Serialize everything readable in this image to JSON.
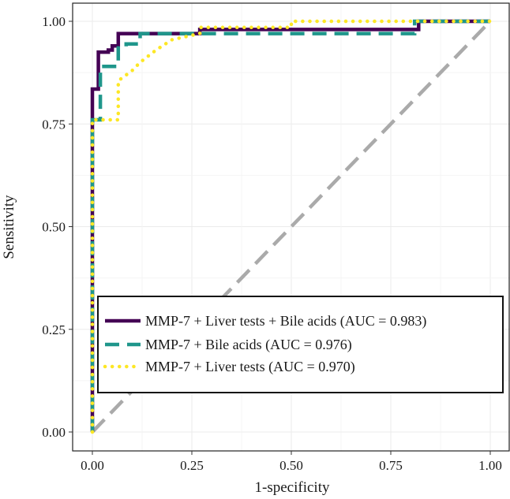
{
  "chart_data": {
    "type": "line",
    "xlabel": "1-specificity",
    "ylabel": "Sensitivity",
    "xlim": [
      0,
      1
    ],
    "ylim": [
      0,
      1
    ],
    "xticks": [
      0,
      0.25,
      0.5,
      0.75,
      1
    ],
    "xtick_labels": [
      "0.00",
      "0.25",
      "0.50",
      "0.75",
      "1.00"
    ],
    "yticks": [
      0,
      0.25,
      0.5,
      0.75,
      1
    ],
    "ytick_labels": [
      "0.00",
      "0.25",
      "0.50",
      "0.75",
      "1.00"
    ],
    "grid": true,
    "legend_position": "bottom-right",
    "reference_line": {
      "x": [
        0,
        1
      ],
      "y": [
        0,
        1
      ],
      "color": "#aaaaaa",
      "style": "dashed"
    },
    "series": [
      {
        "name": "MMP-7 + Liver tests + Bile acids (AUC = 0.983)",
        "color": "#440154",
        "style": "solid",
        "x": [
          0,
          0,
          0.015,
          0.015,
          0.04,
          0.04,
          0.05,
          0.05,
          0.065,
          0.065,
          0.27,
          0.27,
          0.82,
          0.82,
          1
        ],
        "y": [
          0,
          0.835,
          0.835,
          0.925,
          0.925,
          0.93,
          0.93,
          0.94,
          0.94,
          0.97,
          0.97,
          0.98,
          0.98,
          1,
          1
        ]
      },
      {
        "name": "MMP-7 + Bile acids (AUC = 0.976)",
        "color": "#1f968b",
        "style": "dashed",
        "x": [
          0,
          0,
          0.02,
          0.02,
          0.065,
          0.065,
          0.085,
          0.085,
          0.12,
          0.12,
          0.275,
          0.275,
          0.81,
          0.81,
          1
        ],
        "y": [
          0,
          0.76,
          0.76,
          0.89,
          0.89,
          0.935,
          0.935,
          0.945,
          0.945,
          0.97,
          0.97,
          0.97,
          0.97,
          1,
          1
        ]
      },
      {
        "name": "MMP-7 + Liver tests (AUC = 0.970)",
        "color": "#fde725",
        "style": "dotted",
        "x": [
          0,
          0,
          0.02,
          0.02,
          0.065,
          0.065,
          0.1,
          0.12,
          0.16,
          0.2,
          0.27,
          0.27,
          0.5,
          0.5,
          1
        ],
        "y": [
          0,
          0.76,
          0.76,
          0.76,
          0.76,
          0.855,
          0.88,
          0.9,
          0.93,
          0.955,
          0.97,
          0.985,
          0.985,
          1,
          1
        ]
      }
    ]
  }
}
